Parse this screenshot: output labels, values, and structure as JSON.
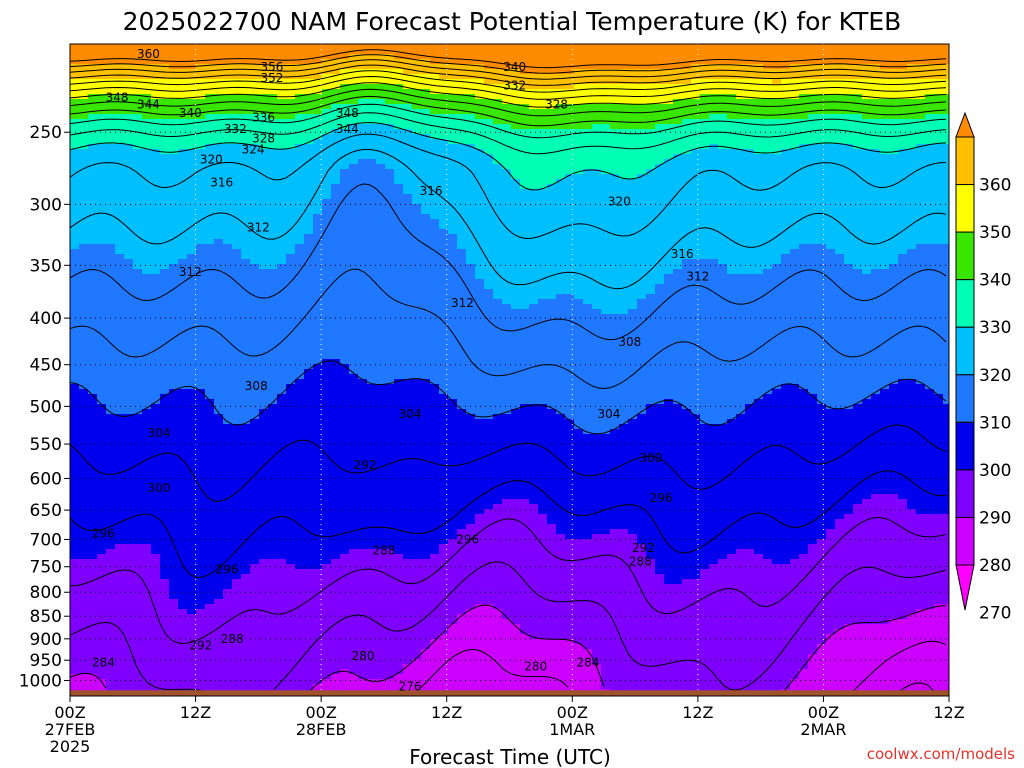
{
  "chart_data": {
    "type": "heatmap",
    "title": "2025022700 NAM Forecast Potential Temperature (K) for KTEB",
    "xlabel": "Forecast Time (UTC)",
    "ylabel": "",
    "credit": "coolwx.com/models",
    "x_ticks": [
      {
        "hours": 0,
        "lines": [
          "00Z",
          "27FEB",
          "2025"
        ]
      },
      {
        "hours": 12,
        "lines": [
          "12Z"
        ]
      },
      {
        "hours": 24,
        "lines": [
          "00Z",
          "28FEB"
        ]
      },
      {
        "hours": 36,
        "lines": [
          "12Z"
        ]
      },
      {
        "hours": 48,
        "lines": [
          "00Z",
          "1MAR"
        ]
      },
      {
        "hours": 60,
        "lines": [
          "12Z"
        ]
      },
      {
        "hours": 72,
        "lines": [
          "00Z",
          "2MAR"
        ]
      },
      {
        "hours": 84,
        "lines": [
          "12Z"
        ]
      }
    ],
    "xlim_hours": [
      0,
      84
    ],
    "y_ticks": [
      250,
      300,
      350,
      400,
      450,
      500,
      550,
      600,
      650,
      700,
      750,
      800,
      850,
      900,
      950,
      1000
    ],
    "ylim_hpa": [
      200,
      1040
    ],
    "y_log": true,
    "grid": true,
    "surface_hpa": 1025,
    "surface_color": "#a0522d",
    "colorbar": {
      "labels": [
        "360",
        "350",
        "340",
        "330",
        "320",
        "310",
        "300",
        "290",
        "280",
        "270"
      ],
      "levels": [
        270,
        280,
        290,
        300,
        310,
        320,
        330,
        340,
        350,
        360
      ],
      "colors": [
        "#ff00ff",
        "#cc00ff",
        "#8000ff",
        "#0000ee",
        "#1f78ff",
        "#00bfff",
        "#00ffb4",
        "#39e600",
        "#ffff00",
        "#ffc000",
        "#ff8c00"
      ]
    },
    "contour_interval": 4,
    "contour_labels": [
      {
        "text": "360",
        "hours": 7.5,
        "hpa": 205
      },
      {
        "text": "356",
        "hours": 19.3,
        "hpa": 212
      },
      {
        "text": "352",
        "hours": 19.3,
        "hpa": 218
      },
      {
        "text": "348",
        "hours": 4.5,
        "hpa": 229
      },
      {
        "text": "344",
        "hours": 7.5,
        "hpa": 233
      },
      {
        "text": "340",
        "hours": 11.5,
        "hpa": 238
      },
      {
        "text": "336",
        "hours": 18.5,
        "hpa": 241
      },
      {
        "text": "332",
        "hours": 15.8,
        "hpa": 248
      },
      {
        "text": "328",
        "hours": 18.5,
        "hpa": 254
      },
      {
        "text": "324",
        "hours": 17.5,
        "hpa": 261
      },
      {
        "text": "320",
        "hours": 13.5,
        "hpa": 268
      },
      {
        "text": "316",
        "hours": 14.5,
        "hpa": 284
      },
      {
        "text": "312",
        "hours": 18,
        "hpa": 318
      },
      {
        "text": "312",
        "hours": 11.5,
        "hpa": 356
      },
      {
        "text": "308",
        "hours": 17.8,
        "hpa": 475
      },
      {
        "text": "304",
        "hours": 8.5,
        "hpa": 535
      },
      {
        "text": "300",
        "hours": 8.5,
        "hpa": 615
      },
      {
        "text": "296",
        "hours": 3.2,
        "hpa": 690
      },
      {
        "text": "296",
        "hours": 15,
        "hpa": 755
      },
      {
        "text": "292",
        "hours": 12.5,
        "hpa": 915
      },
      {
        "text": "288",
        "hours": 15.5,
        "hpa": 900
      },
      {
        "text": "284",
        "hours": 3.2,
        "hpa": 955
      },
      {
        "text": "348",
        "hours": 26.5,
        "hpa": 238
      },
      {
        "text": "344",
        "hours": 26.5,
        "hpa": 248
      },
      {
        "text": "292",
        "hours": 28.2,
        "hpa": 580
      },
      {
        "text": "304",
        "hours": 32.5,
        "hpa": 510
      },
      {
        "text": "288",
        "hours": 30,
        "hpa": 720
      },
      {
        "text": "280",
        "hours": 28,
        "hpa": 940
      },
      {
        "text": "276",
        "hours": 32.5,
        "hpa": 1015
      },
      {
        "text": "316",
        "hours": 34.5,
        "hpa": 290
      },
      {
        "text": "340",
        "hours": 42.5,
        "hpa": 212
      },
      {
        "text": "332",
        "hours": 42.5,
        "hpa": 222
      },
      {
        "text": "328",
        "hours": 46.5,
        "hpa": 233
      },
      {
        "text": "312",
        "hours": 37.5,
        "hpa": 385
      },
      {
        "text": "296",
        "hours": 38,
        "hpa": 700
      },
      {
        "text": "280",
        "hours": 44.5,
        "hpa": 965
      },
      {
        "text": "304",
        "hours": 51.5,
        "hpa": 510
      },
      {
        "text": "320",
        "hours": 52.5,
        "hpa": 298
      },
      {
        "text": "316",
        "hours": 58.5,
        "hpa": 340
      },
      {
        "text": "312",
        "hours": 60,
        "hpa": 360
      },
      {
        "text": "308",
        "hours": 53.5,
        "hpa": 425
      },
      {
        "text": "300",
        "hours": 55.5,
        "hpa": 570
      },
      {
        "text": "296",
        "hours": 56.5,
        "hpa": 630
      },
      {
        "text": "292",
        "hours": 54.8,
        "hpa": 715
      },
      {
        "text": "288",
        "hours": 54.5,
        "hpa": 740
      },
      {
        "text": "284",
        "hours": 49.5,
        "hpa": 955
      }
    ]
  }
}
